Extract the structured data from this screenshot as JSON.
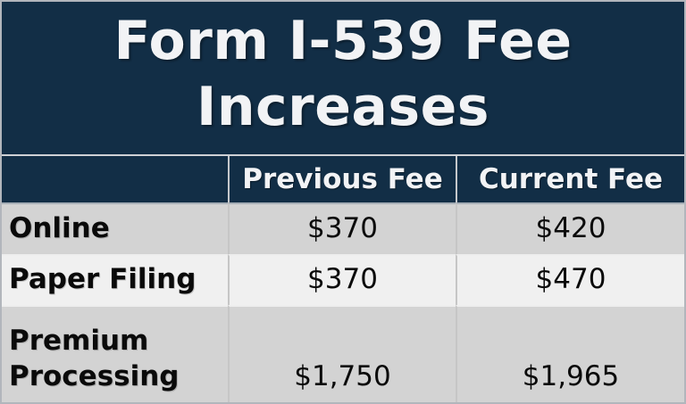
{
  "title": {
    "full": "Form I-539 Fee Increases",
    "lines": [
      "Form I-539 Fee",
      "Increases"
    ]
  },
  "table": {
    "columns": [
      "",
      "Previous Fee",
      "Current Fee"
    ],
    "rows": [
      {
        "label": "Online",
        "previous_fee": "$370",
        "current_fee": "$420"
      },
      {
        "label": "Paper Filing",
        "previous_fee": "$370",
        "current_fee": "$470"
      },
      {
        "label": "Premium Processing",
        "previous_fee": "$1,750",
        "current_fee": "$1,965"
      }
    ]
  },
  "chart_data": {
    "type": "table",
    "title": "Form I-539 Fee Increases",
    "columns": [
      "",
      "Previous Fee",
      "Current Fee"
    ],
    "rows": [
      [
        "Online",
        "$370",
        "$420"
      ],
      [
        "Paper Filing",
        "$370",
        "$470"
      ],
      [
        "Premium Processing",
        "$1,750",
        "$1,965"
      ]
    ],
    "values": {
      "online": {
        "previous": 370,
        "current": 420
      },
      "paper_filing": {
        "previous": 370,
        "current": 470
      },
      "premium_processing": {
        "previous": 1750,
        "current": 1965
      }
    }
  },
  "colors": {
    "navy": "#122e46",
    "row_gray": "#d3d3d3",
    "row_light": "#f0f0f0",
    "title_text": "#f2f3f5",
    "body_text": "#0a0a0a",
    "outer_border": "#b2b6bc"
  }
}
